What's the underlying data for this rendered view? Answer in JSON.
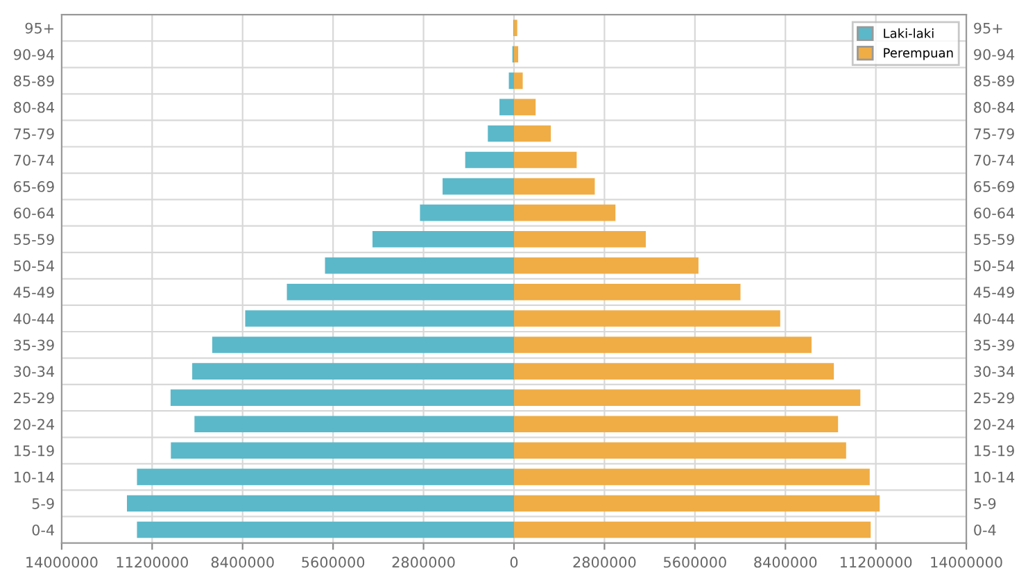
{
  "chart_data": {
    "type": "bar",
    "orientation": "horizontal",
    "stacked": true,
    "legend": "top right",
    "grid": true,
    "categories": [
      "95+",
      "90-94",
      "85-89",
      "80-84",
      "75-79",
      "70-74",
      "65-69",
      "60-64",
      "55-59",
      "50-54",
      "45-49",
      "40-44",
      "35-39",
      "30-34",
      "25-29",
      "20-24",
      "15-19",
      "10-14",
      "5-9",
      "0-4"
    ],
    "series": [
      {
        "name": "Laki-laki",
        "color": "#5bb8c9",
        "values": [
          -20000,
          -50000,
          -160000,
          -450000,
          -810000,
          -1510000,
          -2210000,
          -2910000,
          -4380000,
          -5850000,
          -7030000,
          -8320000,
          -9340000,
          -9960000,
          -10630000,
          -9890000,
          -10620000,
          -11670000,
          -11980000,
          -11670000
        ]
      },
      {
        "name": "Perempuan",
        "color": "#f0ad45",
        "values": [
          100000,
          130000,
          270000,
          670000,
          1140000,
          1940000,
          2500000,
          3140000,
          4080000,
          5710000,
          7010000,
          8240000,
          9210000,
          9900000,
          10720000,
          10030000,
          10280000,
          11010000,
          11320000,
          11040000
        ]
      }
    ],
    "xlim": [
      -14000000,
      14000000
    ],
    "xticks": [
      {
        "value": -14000000,
        "label": "14000000"
      },
      {
        "value": -11200000,
        "label": "11200000"
      },
      {
        "value": -8400000,
        "label": "8400000"
      },
      {
        "value": -5600000,
        "label": "5600000"
      },
      {
        "value": -2800000,
        "label": "2800000"
      },
      0,
      2800000,
      5600000,
      8400000,
      11200000,
      14000000
    ]
  }
}
